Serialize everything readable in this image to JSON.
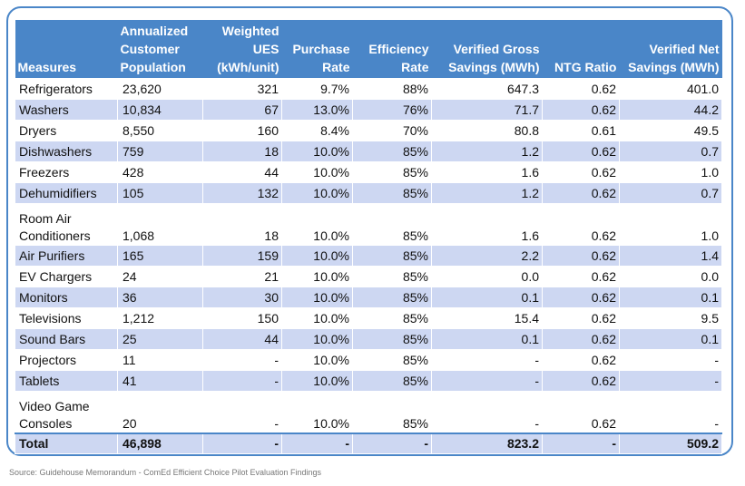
{
  "table": {
    "headers": {
      "measures": "Measures",
      "population": "Annualized Customer Population",
      "ues": "Weighted UES (kWh/unit)",
      "purchase": "Purchase Rate",
      "efficiency": "Efficiency Rate",
      "gross": "Verified Gross Savings (MWh)",
      "ntg": "NTG Ratio",
      "net": "Verified Net Savings (MWh)"
    },
    "rows": [
      {
        "measure": "Refrigerators",
        "population": "23,620",
        "ues": "321",
        "purchase": "9.7%",
        "efficiency": "88%",
        "gross": "647.3",
        "ntg": "0.62",
        "net": "401.0"
      },
      {
        "measure": "Washers",
        "population": "10,834",
        "ues": "67",
        "purchase": "13.0%",
        "efficiency": "76%",
        "gross": "71.7",
        "ntg": "0.62",
        "net": "44.2"
      },
      {
        "measure": "Dryers",
        "population": "8,550",
        "ues": "160",
        "purchase": "8.4%",
        "efficiency": "70%",
        "gross": "80.8",
        "ntg": "0.61",
        "net": "49.5"
      },
      {
        "measure": "Dishwashers",
        "population": "759",
        "ues": "18",
        "purchase": "10.0%",
        "efficiency": "85%",
        "gross": "1.2",
        "ntg": "0.62",
        "net": "0.7"
      },
      {
        "measure": "Freezers",
        "population": "428",
        "ues": "44",
        "purchase": "10.0%",
        "efficiency": "85%",
        "gross": "1.6",
        "ntg": "0.62",
        "net": "1.0"
      },
      {
        "measure": "Dehumidifiers",
        "population": "105",
        "ues": "132",
        "purchase": "10.0%",
        "efficiency": "85%",
        "gross": "1.2",
        "ntg": "0.62",
        "net": "0.7"
      },
      {
        "measure": "Room Air Conditioners",
        "population": "1,068",
        "ues": "18",
        "purchase": "10.0%",
        "efficiency": "85%",
        "gross": "1.6",
        "ntg": "0.62",
        "net": "1.0"
      },
      {
        "measure": "Air Purifiers",
        "population": "165",
        "ues": "159",
        "purchase": "10.0%",
        "efficiency": "85%",
        "gross": "2.2",
        "ntg": "0.62",
        "net": "1.4"
      },
      {
        "measure": "EV Chargers",
        "population": "24",
        "ues": "21",
        "purchase": "10.0%",
        "efficiency": "85%",
        "gross": "0.0",
        "ntg": "0.62",
        "net": "0.0"
      },
      {
        "measure": "Monitors",
        "population": "36",
        "ues": "30",
        "purchase": "10.0%",
        "efficiency": "85%",
        "gross": "0.1",
        "ntg": "0.62",
        "net": "0.1"
      },
      {
        "measure": "Televisions",
        "population": "1,212",
        "ues": "150",
        "purchase": "10.0%",
        "efficiency": "85%",
        "gross": "15.4",
        "ntg": "0.62",
        "net": "9.5"
      },
      {
        "measure": "Sound Bars",
        "population": "25",
        "ues": "44",
        "purchase": "10.0%",
        "efficiency": "85%",
        "gross": "0.1",
        "ntg": "0.62",
        "net": "0.1"
      },
      {
        "measure": "Projectors",
        "population": "11",
        "ues": "-",
        "purchase": "10.0%",
        "efficiency": "85%",
        "gross": "-",
        "ntg": "0.62",
        "net": "-"
      },
      {
        "measure": "Tablets",
        "population": "41",
        "ues": "-",
        "purchase": "10.0%",
        "efficiency": "85%",
        "gross": "-",
        "ntg": "0.62",
        "net": "-"
      },
      {
        "measure": "Video Game Consoles",
        "population": "20",
        "ues": "-",
        "purchase": "10.0%",
        "efficiency": "85%",
        "gross": "-",
        "ntg": "0.62",
        "net": "-"
      }
    ],
    "total": {
      "measure": "Total",
      "population": "46,898",
      "ues": "-",
      "purchase": "-",
      "efficiency": "-",
      "gross": "823.2",
      "ntg": "-",
      "net": "509.2"
    }
  },
  "source": "Source: Guidehouse Memorandum - ComEd Efficient Choice Pilot Evaluation Findings"
}
